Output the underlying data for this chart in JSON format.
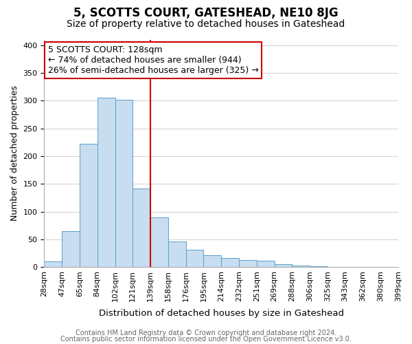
{
  "title": "5, SCOTTS COURT, GATESHEAD, NE10 8JG",
  "subtitle": "Size of property relative to detached houses in Gateshead",
  "xlabel": "Distribution of detached houses by size in Gateshead",
  "ylabel": "Number of detached properties",
  "tick_labels": [
    "28sqm",
    "47sqm",
    "65sqm",
    "84sqm",
    "102sqm",
    "121sqm",
    "139sqm",
    "158sqm",
    "176sqm",
    "195sqm",
    "214sqm",
    "232sqm",
    "251sqm",
    "269sqm",
    "288sqm",
    "306sqm",
    "325sqm",
    "343sqm",
    "362sqm",
    "380sqm",
    "399sqm"
  ],
  "values": [
    10,
    65,
    222,
    305,
    302,
    142,
    90,
    46,
    31,
    22,
    16,
    13,
    12,
    5,
    3,
    2,
    1,
    1,
    1,
    1
  ],
  "bar_color": "#c8ddf0",
  "bar_edge_color": "#5a9fc8",
  "vline_after_bar": 5,
  "vline_color": "#cc0000",
  "ylim": [
    0,
    410
  ],
  "yticks": [
    0,
    50,
    100,
    150,
    200,
    250,
    300,
    350,
    400
  ],
  "annotation_line1": "5 SCOTTS COURT: 128sqm",
  "annotation_line2": "← 74% of detached houses are smaller (944)",
  "annotation_line3": "26% of semi-detached houses are larger (325) →",
  "annotation_box_color": "#ffffff",
  "annotation_box_edge": "#cc0000",
  "footer1": "Contains HM Land Registry data © Crown copyright and database right 2024.",
  "footer2": "Contains public sector information licensed under the Open Government Licence v3.0.",
  "title_fontsize": 12,
  "subtitle_fontsize": 10,
  "xlabel_fontsize": 9.5,
  "ylabel_fontsize": 9,
  "tick_fontsize": 8,
  "annotation_fontsize": 9,
  "footer_fontsize": 7
}
